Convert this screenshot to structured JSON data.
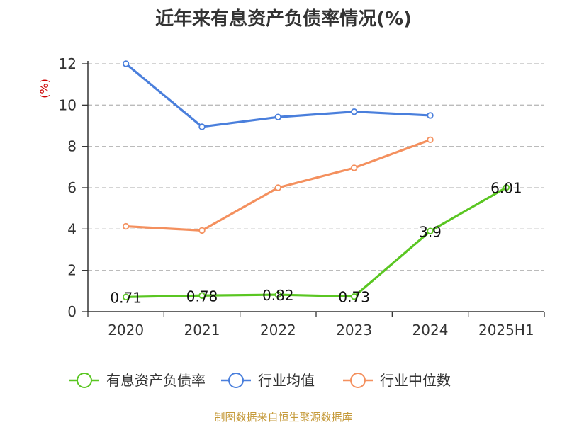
{
  "chart_data": {
    "type": "line",
    "title": "近年来有息资产负债率情况(%)",
    "ylabel": "(%)",
    "xlabel": "",
    "categories": [
      "2020",
      "2021",
      "2022",
      "2023",
      "2024",
      "2025H1"
    ],
    "ylim": [
      0,
      12
    ],
    "yticks": [
      0,
      2,
      4,
      6,
      8,
      10,
      12
    ],
    "grid": true,
    "legend_position": "bottom",
    "series": [
      {
        "name": "有息资产负债率",
        "color": "#5ac622",
        "values": [
          0.71,
          0.78,
          0.82,
          0.73,
          3.9,
          6.01
        ],
        "labels": [
          "0.71",
          "0.78",
          "0.82",
          "0.73",
          "3.9",
          "6.01"
        ]
      },
      {
        "name": "行业均值",
        "color": "#4a7fdc",
        "values": [
          12.0,
          8.95,
          9.42,
          9.68,
          9.5,
          null
        ]
      },
      {
        "name": "行业中位数",
        "color": "#f4905e",
        "values": [
          4.13,
          3.93,
          6.0,
          6.96,
          8.32,
          null
        ]
      }
    ]
  },
  "source": "制图数据来自恒生聚源数据库"
}
